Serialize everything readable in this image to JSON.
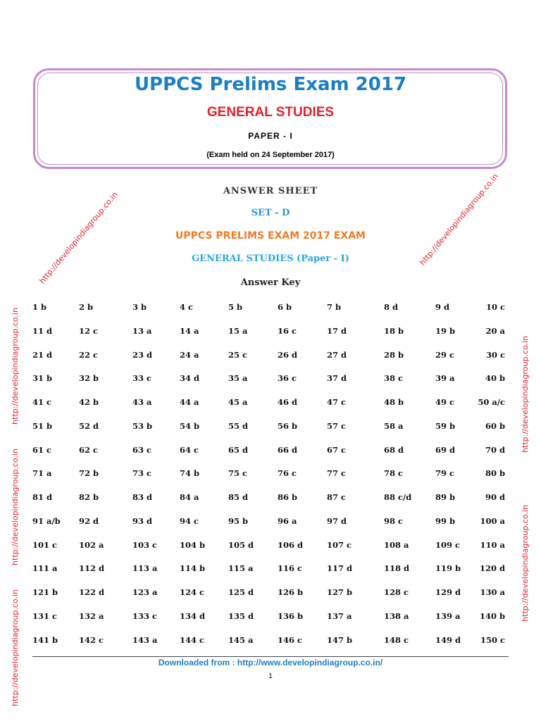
{
  "header": {
    "title": "UPPCS Prelims Exam 2017",
    "subject": "GENERAL STUDIES",
    "paper": "PAPER - I",
    "date_note": "(Exam held on 24 September 2017)"
  },
  "section": {
    "answer_sheet": "ANSWER SHEET",
    "set": "SET - D",
    "exam": "UPPCS PRELIMS EXAM 2017 EXAM",
    "subject": "GENERAL STUDIES (Paper - I)",
    "key_title": "Answer Key"
  },
  "answers": [
    [
      "1 b",
      "2 b",
      "3 b",
      "4 c",
      "5 b",
      "6 b",
      "7 b",
      "8 d",
      "9 d",
      "10 c"
    ],
    [
      "11 d",
      "12 c",
      "13 a",
      "14 a",
      "15 a",
      "16 c",
      "17 d",
      "18 b",
      "19 b",
      "20 a"
    ],
    [
      "21 d",
      "22 c",
      "23 d",
      "24 a",
      "25 c",
      "26 d",
      "27 d",
      "28 b",
      "29 c",
      "30 c"
    ],
    [
      "31 b",
      "32 b",
      "33 c",
      "34 d",
      "35 a",
      "36 c",
      "37 d",
      "38 c",
      "39 a",
      "40 b"
    ],
    [
      "41 c",
      "42 b",
      "43 a",
      "44 a",
      "45 a",
      "46 d",
      "47 c",
      "48 b",
      "49 c",
      "50 a/c"
    ],
    [
      "51 b",
      "52 d",
      "53 b",
      "54 b",
      "55 d",
      "56 b",
      "57 c",
      "58 a",
      "59 b",
      "60 b"
    ],
    [
      "61 c",
      "62 c",
      "63 c",
      "64 c",
      "65 d",
      "66 d",
      "67 c",
      "68 d",
      "69 d",
      "70 d"
    ],
    [
      "71 a",
      "72 b",
      "73 c",
      "74 b",
      "75 c",
      "76 c",
      "77 c",
      "78 c",
      "79 c",
      "80 b"
    ],
    [
      "81 d",
      "82 b",
      "83 d",
      "84 a",
      "85 d",
      "86 b",
      "87 c",
      "88 c/d",
      "89 b",
      "90 d"
    ],
    [
      "91 a/b",
      "92 d",
      "93 d",
      "94 c",
      "95 b",
      "96 a",
      "97 d",
      "98 c",
      "99 b",
      "100 a"
    ],
    [
      "101 c",
      "102 a",
      "103 c",
      "104 b",
      "105 d",
      "106 d",
      "107 c",
      "108 a",
      "109 c",
      "110 a"
    ],
    [
      "111 a",
      "112 d",
      "113 a",
      "114 b",
      "115 a",
      "116 c",
      "117 d",
      "118 d",
      "119 b",
      "120 d"
    ],
    [
      "121 b",
      "122 d",
      "123 a",
      "124 c",
      "125 d",
      "126 b",
      "127 b",
      "128 c",
      "129 d",
      "130 a"
    ],
    [
      "131 c",
      "132 a",
      "133 c",
      "134 d",
      "135 d",
      "136 b",
      "137 a",
      "138 a",
      "139 a",
      "140 b"
    ],
    [
      "141 b",
      "142 c",
      "143 a",
      "144 c",
      "145 a",
      "146 c",
      "147 b",
      "148 c",
      "149 d",
      "150 c"
    ]
  ],
  "watermark": "http://developindiagroup.co.in",
  "footer": {
    "downloaded": "Downloaded from : http://www.developindiagroup.co.in/",
    "page_number": "1"
  },
  "colors": {
    "title": "#1a7fc4",
    "subject": "#e3202b",
    "exam": "#f07a24",
    "frame": "#c38ad0",
    "watermark": "#e3202b"
  }
}
